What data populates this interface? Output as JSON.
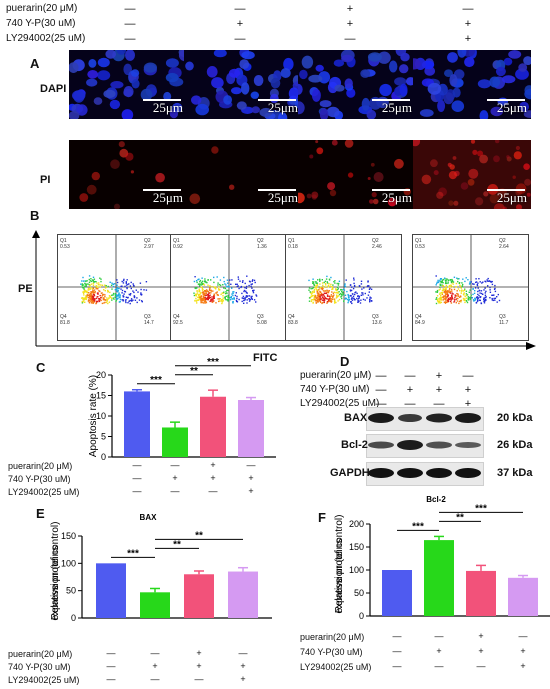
{
  "treatments": {
    "top": {
      "puerarin": "puerarin(20 μM)",
      "y740p": "740 Y-P(30 uM)",
      "ly": "LY294002(25 uM)",
      "rows": [
        [
          "—",
          "—",
          "+",
          "—"
        ],
        [
          "—",
          "+",
          "+",
          "+"
        ],
        [
          "—",
          "—",
          "—",
          "+"
        ]
      ]
    }
  },
  "panel_a": {
    "letter": "A",
    "row_labels": [
      "DAPI",
      "PI"
    ],
    "scale": "25μm"
  },
  "panel_b": {
    "letter": "B",
    "ylabel": "PE",
    "xlabel": "FITC",
    "plots": [
      {
        "q1": "Q1\n0.53",
        "q2": "Q2\n2.97",
        "q3": "Q3\n14.7",
        "q4": "Q4\n81.8"
      },
      {
        "q1": "Q1\n0.92",
        "q2": "Q2\n1.36",
        "q3": "Q3\n5.08",
        "q4": "Q4\n92.5"
      },
      {
        "q1": "Q1\n0.18",
        "q2": "Q2\n2.46",
        "q3": "Q3\n13.6",
        "q4": "Q4\n83.8"
      },
      {
        "q1": "Q1\n0.53",
        "q2": "Q2\n2.64",
        "q3": "Q3\n11.7",
        "q4": "Q4\n84.9"
      }
    ]
  },
  "panel_d": {
    "letter": "D",
    "puerarin": "puerarin(20 μM)",
    "y740p": "740 Y-P(30 uM)",
    "ly": "LY294002(25 uM)",
    "rows": [
      [
        "—",
        "—",
        "+",
        "—"
      ],
      [
        "—",
        "+",
        "+",
        "+"
      ],
      [
        "—",
        "—",
        "—",
        "+"
      ]
    ],
    "bands": [
      {
        "name": "BAX",
        "kda": "20 kDa"
      },
      {
        "name": "Bcl-2",
        "kda": "26 kDa"
      },
      {
        "name": "GAPDH",
        "kda": "37 kDa"
      }
    ]
  },
  "chart_data": [
    {
      "panel": "C",
      "type": "bar",
      "title": "",
      "ylabel": "Apoptosis rate (%)",
      "ylim": [
        0,
        20
      ],
      "yticks": [
        "0",
        "5",
        "10",
        "15",
        "20"
      ],
      "categories": [
        "1",
        "2",
        "3",
        "4"
      ],
      "values": [
        16,
        7.2,
        14.7,
        13.9
      ],
      "errors": [
        0.4,
        1.3,
        1.6,
        0.6
      ],
      "colors": [
        "#4f5bf0",
        "#27d81a",
        "#f2527a",
        "#d59af2"
      ],
      "sig": [
        {
          "label": "***",
          "from": 0,
          "to": 1
        },
        {
          "label": "**",
          "from": 1,
          "to": 2
        },
        {
          "label": "***",
          "from": 1,
          "to": 3
        }
      ],
      "treat_labels": [
        "puerarin(20 μM)",
        "740 Y-P(30 uM)",
        "LY294002(25 uM)"
      ],
      "treat_rows": [
        [
          "—",
          "—",
          "+",
          "—"
        ],
        [
          "—",
          "+",
          "+",
          "+"
        ],
        [
          "—",
          "—",
          "—",
          "+"
        ]
      ]
    },
    {
      "panel": "E",
      "type": "bar",
      "title": "BAX",
      "ylabel": "Relative proteins expression (of control)",
      "ylim": [
        0,
        150
      ],
      "yticks": [
        "0",
        "50",
        "100",
        "150"
      ],
      "categories": [
        "1",
        "2",
        "3",
        "4"
      ],
      "values": [
        100,
        47,
        80,
        85
      ],
      "errors": [
        0,
        7,
        6,
        7
      ],
      "colors": [
        "#4f5bf0",
        "#27d81a",
        "#f2527a",
        "#d59af2"
      ],
      "sig": [
        {
          "label": "***",
          "from": 0,
          "to": 1
        },
        {
          "label": "**",
          "from": 1,
          "to": 2
        },
        {
          "label": "**",
          "from": 1,
          "to": 3
        }
      ],
      "treat_labels": [
        "puerarin(20 μM)",
        "740 Y-P(30 uM)",
        "LY294002(25 uM)"
      ],
      "treat_rows": [
        [
          "—",
          "—",
          "+",
          "—"
        ],
        [
          "—",
          "+",
          "+",
          "+"
        ],
        [
          "—",
          "—",
          "—",
          "+"
        ]
      ]
    },
    {
      "panel": "F",
      "type": "bar",
      "title": "Bcl-2",
      "ylabel": "Relative proteins expression (of control)",
      "ylim": [
        0,
        200
      ],
      "yticks": [
        "0",
        "50",
        "100",
        "150",
        "200"
      ],
      "categories": [
        "1",
        "2",
        "3",
        "4"
      ],
      "values": [
        100,
        165,
        98,
        83
      ],
      "errors": [
        0,
        8,
        12,
        5
      ],
      "colors": [
        "#4f5bf0",
        "#27d81a",
        "#f2527a",
        "#d59af2"
      ],
      "sig": [
        {
          "label": "***",
          "from": 0,
          "to": 1
        },
        {
          "label": "**",
          "from": 1,
          "to": 2
        },
        {
          "label": "***",
          "from": 1,
          "to": 3
        }
      ],
      "treat_labels": [
        "puerarin(20 μM)",
        "740 Y-P(30 uM)",
        "LY294002(25 uM)"
      ],
      "treat_rows": [
        [
          "—",
          "—",
          "+",
          "—"
        ],
        [
          "—",
          "+",
          "+",
          "+"
        ],
        [
          "—",
          "—",
          "—",
          "+"
        ]
      ]
    }
  ]
}
